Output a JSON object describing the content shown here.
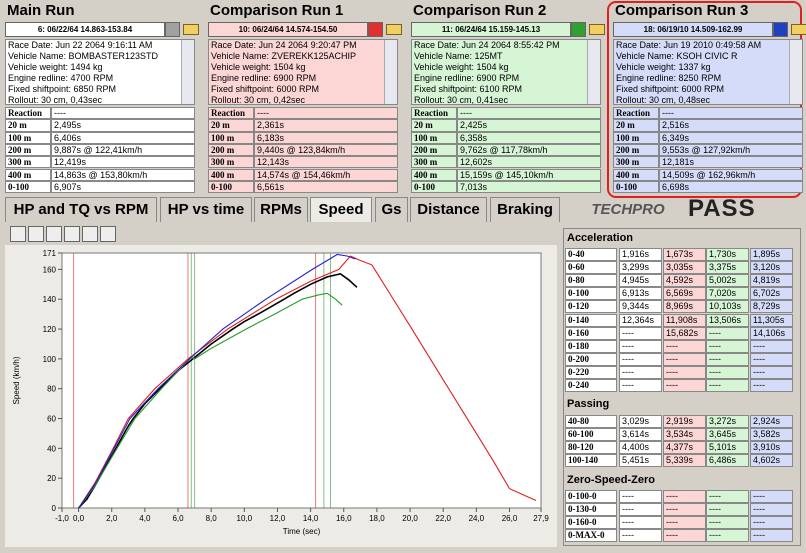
{
  "runs": [
    {
      "title": "Main Run",
      "selector": "6:  06/22/64 14.863-153.84",
      "info": [
        "Race Date: Jun 22 2064  9:16:11 AM",
        "Vehicle Name: BOMBASTER123STD",
        "Vehicle weight: 1494 kg",
        "Engine redline: 4700 RPM",
        "Fixed shiftpoint: 6850 RPM",
        "Rollout: 30 cm, 0,43sec"
      ],
      "results": [
        "----",
        "2,495s",
        "6,406s",
        "9,887s @ 122,41km/h",
        "12,419s",
        "14,863s @ 153,80km/h",
        "6,907s"
      ]
    },
    {
      "title": "Comparison Run 1",
      "selector": "10:  06/24/64 14.574-154.50",
      "info": [
        "Race Date: Jun 24 2064  9:20:47 PM",
        "Vehicle Name: ZVEREKK125ACHIP",
        "Vehicle weight: 1504 kg",
        "Engine redline: 6900 RPM",
        "Fixed shiftpoint: 6000 RPM",
        "Rollout: 30 cm, 0,42sec"
      ],
      "results": [
        "----",
        "2,361s",
        "6,183s",
        "9,440s @ 123,84km/h",
        "12,143s",
        "14,574s @ 154,46km/h",
        "6,561s"
      ]
    },
    {
      "title": "Comparison Run 2",
      "selector": "11:  06/24/64 15.159-145.13",
      "info": [
        "Race Date: Jun 24 2064  8:55:42 PM",
        "Vehicle Name: 125MT",
        "Vehicle weight: 1504 kg",
        "Engine redline: 6900 RPM",
        "Fixed shiftpoint: 6100 RPM",
        "Rollout: 30 cm, 0,41sec"
      ],
      "results": [
        "----",
        "2,425s",
        "6,358s",
        "9,762s @ 117,78km/h",
        "12,602s",
        "15,159s @ 145,10km/h",
        "7,013s"
      ]
    },
    {
      "title": "Comparison Run 3",
      "selector": "18:  06/19/10 14.509-162.99",
      "info": [
        "Race Date: Jun 19 2010  0:49:58 AM",
        "Vehicle Name: KSOH CIVIC R",
        "Vehicle weight: 1337 kg",
        "Engine redline: 8250 RPM",
        "Fixed shiftpoint: 6000 RPM",
        "Rollout: 30 cm, 0,48sec"
      ],
      "results": [
        "----",
        "2,516s",
        "6,349s",
        "9,553s @ 127,92km/h",
        "12,181s",
        "14,509s @ 162,96km/h",
        "6,698s"
      ]
    }
  ],
  "result_labels": [
    "Reaction",
    "20 m",
    "100 m",
    "200 m",
    "300 m",
    "400 m",
    "0-100"
  ],
  "tabs": [
    "HP and TQ vs RPM",
    "HP vs time",
    "RPMs",
    "Speed",
    "Gs",
    "Distance",
    "Braking"
  ],
  "logo": {
    "brand": "TECHPRO",
    "product": "PASS"
  },
  "chart_data": {
    "type": "line",
    "xlabel": "Time (sec)",
    "ylabel": "Speed (km/h)",
    "xlim": [
      -1,
      27.9
    ],
    "ylim": [
      0,
      171
    ],
    "xticks": [
      {
        "value": -1,
        "label": "-1,0"
      },
      {
        "value": 0,
        "label": "0,0"
      },
      {
        "value": 2,
        "label": "2,0"
      },
      {
        "value": 4,
        "label": "4,0"
      },
      {
        "value": 6,
        "label": "6,0"
      },
      {
        "value": 8,
        "label": "8,0"
      },
      {
        "value": 10,
        "label": "10,0"
      },
      {
        "value": 12,
        "label": "12,0"
      },
      {
        "value": 14,
        "label": "14,0"
      },
      {
        "value": 16,
        "label": "16,0"
      },
      {
        "value": 18,
        "label": "18,0"
      },
      {
        "value": 20,
        "label": "20,0"
      },
      {
        "value": 22,
        "label": "22,0"
      },
      {
        "value": 24,
        "label": "24,0"
      },
      {
        "value": 26,
        "label": "26,0"
      },
      {
        "value": 27.9,
        "label": "27,9"
      }
    ],
    "yticks": [
      0,
      20,
      40,
      60,
      80,
      100,
      120,
      140,
      160,
      171
    ],
    "series": [
      {
        "color": "#000000",
        "x": [
          0,
          0.5,
          1,
          1.5,
          2,
          3,
          3.3,
          4,
          4.9,
          6,
          6.9,
          8,
          9.3,
          10,
          11,
          12.4,
          13,
          14,
          15,
          15.8,
          16.3,
          16.8
        ],
        "values": [
          0,
          6,
          15,
          25,
          35,
          55,
          60,
          70,
          80,
          92,
          100,
          110,
          120,
          125,
          131,
          140,
          144,
          150,
          155,
          157,
          153,
          148
        ]
      },
      {
        "color": "#e02020",
        "x": [
          0,
          1,
          2,
          3,
          4.6,
          6.6,
          9,
          11.9,
          14,
          15.7,
          16.4,
          17,
          17.7,
          20,
          22,
          24,
          25,
          26,
          27,
          27.6
        ],
        "values": [
          0,
          17,
          38,
          60,
          80,
          100,
          120,
          140,
          152,
          160,
          169,
          166,
          163,
          122,
          86,
          50,
          32,
          13,
          8,
          5
        ]
      },
      {
        "color": "#2a9a2a",
        "x": [
          0,
          1,
          2,
          3.4,
          5,
          6.8,
          7,
          8,
          10.1,
          12,
          13.5,
          14.5,
          15,
          15.5,
          15.9
        ],
        "values": [
          0,
          15,
          34,
          60,
          80,
          101,
          100,
          107,
          120,
          131,
          140,
          143,
          144,
          140,
          136
        ]
      },
      {
        "color": "#2020d0",
        "x": [
          0,
          1,
          2,
          3.1,
          4.8,
          6.7,
          8.7,
          11.3,
          14.1,
          15,
          15.6,
          16.2,
          16.7
        ],
        "values": [
          0,
          16,
          37,
          60,
          80,
          100,
          120,
          140,
          160,
          166,
          170,
          169,
          167
        ]
      }
    ],
    "markers": [
      {
        "x": -0.3,
        "color": "#e02020"
      },
      {
        "x": 6.6,
        "color": "#e02020"
      },
      {
        "x": 6.8,
        "color": "#2a9a2a"
      },
      {
        "x": 7,
        "color": "#2a9a2a"
      },
      {
        "x": 14.3,
        "color": "#e02020"
      },
      {
        "x": 14.8,
        "color": "#2a9a2a"
      },
      {
        "x": 15.2,
        "color": "#2a9a2a"
      }
    ]
  },
  "stats": [
    {
      "title": "Acceleration",
      "rows": [
        {
          "label": "0-40",
          "values": [
            "1,916s",
            "1,673s",
            "1,730s",
            "1,895s"
          ]
        },
        {
          "label": "0-60",
          "values": [
            "3,299s",
            "3,035s",
            "3,375s",
            "3,120s"
          ]
        },
        {
          "label": "0-80",
          "values": [
            "4,945s",
            "4,592s",
            "5,002s",
            "4,819s"
          ]
        },
        {
          "label": "0-100",
          "values": [
            "6,913s",
            "6,569s",
            "7,020s",
            "6,702s"
          ]
        },
        {
          "label": "0-120",
          "values": [
            "9,344s",
            "8,969s",
            "10,103s",
            "8,729s"
          ]
        },
        {
          "label": "0-140",
          "values": [
            "12,364s",
            "11,908s",
            "13,506s",
            "11,305s"
          ]
        },
        {
          "label": "0-160",
          "values": [
            "----",
            "15,682s",
            "----",
            "14,106s"
          ]
        },
        {
          "label": "0-180",
          "values": [
            "----",
            "----",
            "----",
            "----"
          ]
        },
        {
          "label": "0-200",
          "values": [
            "----",
            "----",
            "----",
            "----"
          ]
        },
        {
          "label": "0-220",
          "values": [
            "----",
            "----",
            "----",
            "----"
          ]
        },
        {
          "label": "0-240",
          "values": [
            "----",
            "----",
            "----",
            "----"
          ]
        }
      ]
    },
    {
      "title": "Passing",
      "rows": [
        {
          "label": "40-80",
          "values": [
            "3,029s",
            "2,919s",
            "3,272s",
            "2,924s"
          ]
        },
        {
          "label": "60-100",
          "values": [
            "3,614s",
            "3,534s",
            "3,645s",
            "3,582s"
          ]
        },
        {
          "label": "80-120",
          "values": [
            "4,400s",
            "4,377s",
            "5,101s",
            "3,910s"
          ]
        },
        {
          "label": "100-140",
          "values": [
            "5,451s",
            "5,339s",
            "6,486s",
            "4,602s"
          ]
        }
      ]
    },
    {
      "title": "Zero-Speed-Zero",
      "rows": [
        {
          "label": "0-100-0",
          "values": [
            "----",
            "----",
            "----",
            "----"
          ]
        },
        {
          "label": "0-130-0",
          "values": [
            "----",
            "----",
            "----",
            "----"
          ]
        },
        {
          "label": "0-160-0",
          "values": [
            "----",
            "----",
            "----",
            "----"
          ]
        },
        {
          "label": "0-MAX-0",
          "values": [
            "----",
            "----",
            "----",
            "----"
          ]
        }
      ]
    }
  ]
}
